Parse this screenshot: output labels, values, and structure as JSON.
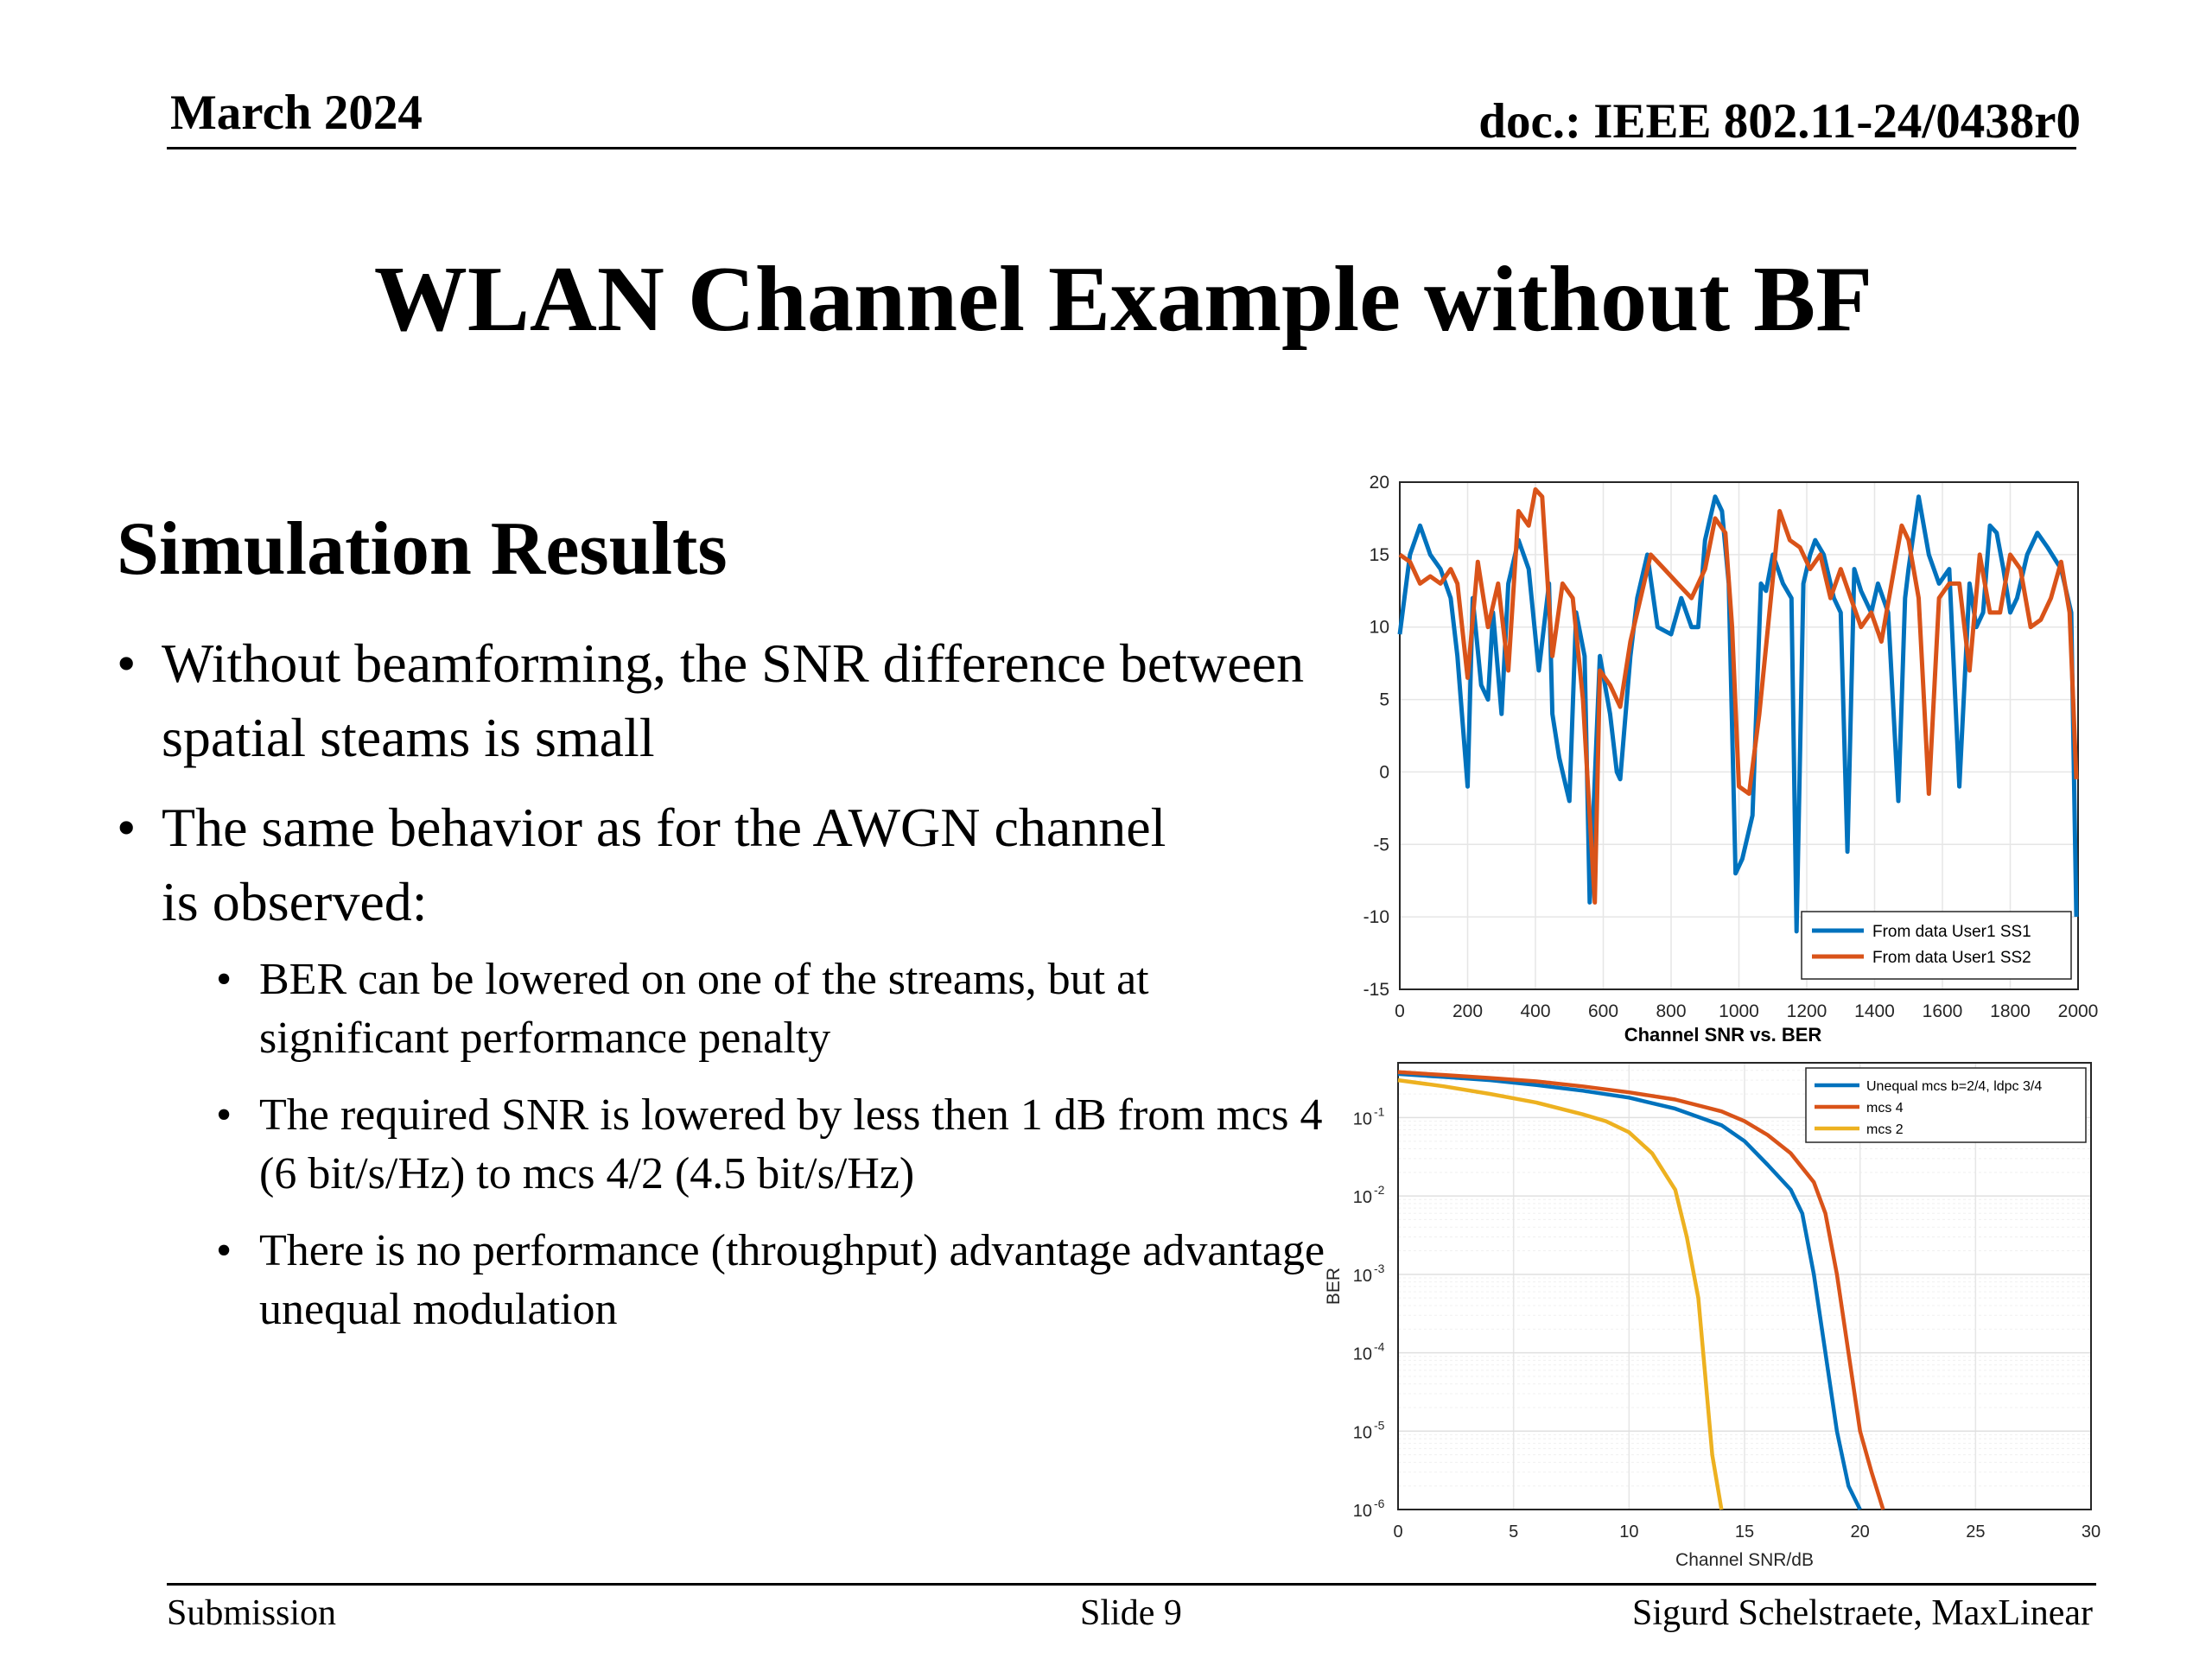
{
  "header": {
    "date": "March 2024",
    "doc": "doc.: IEEE 802.11-24/0438r0"
  },
  "title": "WLAN Channel Example without BF",
  "section_heading": "Simulation Results",
  "bullets": [
    {
      "text": "Without beamforming, the SNR difference between spatial steams is small"
    },
    {
      "text": "The same behavior as for the AWGN channel is observed:",
      "sub": [
        "BER can be lowered on one of the streams, but at significant performance penalty",
        "The required SNR is lowered by less then 1 dB from mcs 4 (6 bit/s/Hz) to mcs 4/2 (4.5 bit/s/Hz)",
        "There is no performance (throughput) advantage advantage unequal modulation"
      ]
    }
  ],
  "chart_data": [
    {
      "type": "line",
      "title": "",
      "xlabel": "",
      "ylabel": "",
      "xlim": [
        0,
        2000
      ],
      "ylim": [
        -15,
        20
      ],
      "xticks": [
        "0",
        "200",
        "400",
        "600",
        "800",
        "1000",
        "1200",
        "1400",
        "1600",
        "1800",
        "2000"
      ],
      "yticks": [
        "20",
        "15",
        "10",
        "5",
        "0",
        "-5",
        "-10",
        "-15"
      ],
      "grid": true,
      "legend": "bottom-right",
      "series": [
        {
          "name": "From data User1 SS1",
          "color": "#0072BD",
          "x": [
            0,
            30,
            60,
            90,
            120,
            150,
            170,
            200,
            215,
            240,
            260,
            275,
            300,
            320,
            350,
            380,
            410,
            440,
            450,
            470,
            490,
            500,
            520,
            545,
            560,
            590,
            620,
            640,
            650,
            680,
            700,
            730,
            760,
            800,
            830,
            860,
            880,
            900,
            930,
            950,
            970,
            990,
            1010,
            1040,
            1065,
            1080,
            1100,
            1130,
            1155,
            1170,
            1190,
            1210,
            1225,
            1250,
            1270,
            1280,
            1300,
            1320,
            1340,
            1360,
            1390,
            1410,
            1440,
            1470,
            1490,
            1500,
            1530,
            1560,
            1590,
            1620,
            1650,
            1680,
            1700,
            1720,
            1740,
            1760,
            1780,
            1800,
            1820,
            1850,
            1880,
            1910,
            1950,
            1980,
            1995
          ],
          "y": [
            9.5,
            15,
            17,
            15,
            14,
            12,
            8,
            -1,
            12,
            6,
            5,
            11,
            4,
            13,
            16,
            14,
            7,
            13,
            4,
            1,
            -1,
            -2,
            11,
            8,
            -9,
            8,
            4,
            0,
            -0.5,
            8,
            12,
            15,
            10,
            9.5,
            12,
            10,
            10,
            16,
            19,
            18,
            13,
            -7,
            -6,
            -3,
            13,
            12.5,
            15,
            13,
            12,
            -11,
            13,
            15,
            16,
            15,
            13,
            12,
            11,
            -5.5,
            14,
            12.5,
            11,
            13,
            11,
            -2,
            12,
            14,
            19,
            15,
            13,
            14,
            -1,
            13,
            10,
            11,
            17,
            16.5,
            14,
            11,
            12,
            15,
            16.5,
            15.5,
            14,
            11,
            -10
          ]
        },
        {
          "name": "From data User1 SS2",
          "color": "#D95319",
          "x": [
            0,
            30,
            60,
            90,
            120,
            150,
            170,
            200,
            230,
            260,
            290,
            320,
            350,
            380,
            400,
            420,
            450,
            480,
            510,
            540,
            555,
            575,
            590,
            620,
            650,
            680,
            710,
            740,
            780,
            820,
            860,
            900,
            930,
            960,
            980,
            1000,
            1030,
            1060,
            1090,
            1120,
            1150,
            1180,
            1210,
            1240,
            1270,
            1300,
            1330,
            1360,
            1390,
            1420,
            1450,
            1480,
            1500,
            1530,
            1560,
            1590,
            1620,
            1650,
            1680,
            1710,
            1740,
            1770,
            1800,
            1830,
            1860,
            1890,
            1920,
            1950,
            1975,
            1995
          ],
          "y": [
            15,
            14.5,
            13,
            13.5,
            13,
            14,
            13,
            6.5,
            14.5,
            10,
            13,
            7,
            18,
            17,
            19.5,
            19,
            8,
            13,
            12,
            5,
            -1,
            -9,
            7,
            6,
            4.5,
            9,
            12,
            15,
            14,
            13,
            12,
            14,
            17.5,
            16.5,
            10,
            -1,
            -1.5,
            4,
            11,
            18,
            16,
            15.5,
            14,
            15,
            12,
            14,
            12,
            10,
            11,
            9,
            13,
            17,
            16,
            12,
            -1.5,
            12,
            13,
            13,
            7,
            15,
            11,
            11,
            15,
            14,
            10,
            10.5,
            12,
            14.5,
            11,
            -0.5
          ]
        }
      ]
    },
    {
      "type": "line",
      "title": "Channel SNR vs. BER",
      "xlabel": "Channel SNR/dB",
      "ylabel": "BER",
      "xlim": [
        0,
        30
      ],
      "ylim": [
        1e-06,
        0.5
      ],
      "yscale": "log",
      "xticks": [
        "0",
        "5",
        "10",
        "15",
        "20",
        "25",
        "30"
      ],
      "yticks": [
        "10",
        "10",
        "10",
        "10",
        "10",
        "10"
      ],
      "ytick_exponents": [
        "-1",
        "-2",
        "-3",
        "-4",
        "-5",
        "-6"
      ],
      "grid": true,
      "legend": "top-right",
      "series": [
        {
          "name": "Unequal mcs b=2/4, ldpc 3/4",
          "color": "#0072BD",
          "x": [
            0,
            2,
            4,
            6,
            8,
            10,
            12,
            14,
            15,
            16,
            17,
            17.5,
            18,
            18.5,
            19,
            19.5,
            20
          ],
          "y": [
            0.36,
            0.33,
            0.3,
            0.26,
            0.22,
            0.18,
            0.13,
            0.08,
            0.05,
            0.025,
            0.012,
            0.006,
            0.001,
            0.0001,
            1e-05,
            2e-06,
            1e-06
          ]
        },
        {
          "name": "mcs 4",
          "color": "#D95319",
          "x": [
            0,
            2,
            4,
            6,
            8,
            10,
            12,
            14,
            15,
            16,
            17,
            18,
            18.5,
            19,
            19.5,
            20,
            20.5,
            21
          ],
          "y": [
            0.38,
            0.35,
            0.32,
            0.29,
            0.25,
            0.21,
            0.17,
            0.12,
            0.09,
            0.06,
            0.035,
            0.015,
            0.006,
            0.001,
            0.0001,
            1e-05,
            3e-06,
            1e-06
          ]
        },
        {
          "name": "mcs 2",
          "color": "#EDB120",
          "x": [
            0,
            2,
            4,
            6,
            8,
            9,
            10,
            11,
            12,
            12.5,
            13,
            13.3,
            13.6,
            14
          ],
          "y": [
            0.3,
            0.25,
            0.2,
            0.155,
            0.11,
            0.09,
            0.065,
            0.035,
            0.012,
            0.003,
            0.0005,
            5e-05,
            5e-06,
            1e-06
          ]
        }
      ]
    }
  ],
  "footer": {
    "left": "Submission",
    "center": "Slide 9",
    "right": "Sigurd Schelstraete, MaxLinear"
  }
}
